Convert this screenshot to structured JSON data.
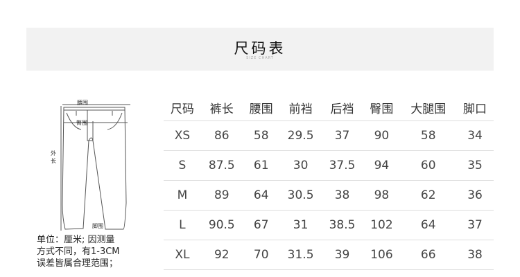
{
  "header": {
    "title": "尺码表",
    "subtitle": "SIZE CHART"
  },
  "diagram": {
    "waist": "腰围",
    "hip": "臀围",
    "outer_length": "外长",
    "hem": "脚围"
  },
  "note": [
    "单位：厘米; 因测量",
    "方式不同，有1-3CM",
    "误差皆属合理范围；"
  ],
  "table": {
    "headers": [
      "尺码",
      "裤长",
      "腰围",
      "前裆",
      "后裆",
      "臀围",
      "大腿围",
      "脚口"
    ],
    "rows": [
      [
        "XS",
        "86",
        "58",
        "29.5",
        "37",
        "90",
        "58",
        "34"
      ],
      [
        "S",
        "87.5",
        "61",
        "30",
        "37.5",
        "94",
        "60",
        "35"
      ],
      [
        "M",
        "89",
        "64",
        "30.5",
        "38",
        "98",
        "62",
        "36"
      ],
      [
        "L",
        "90.5",
        "67",
        "31",
        "38.5",
        "102",
        "64",
        "37"
      ],
      [
        "XL",
        "92",
        "70",
        "31.5",
        "39",
        "106",
        "66",
        "38"
      ]
    ]
  }
}
